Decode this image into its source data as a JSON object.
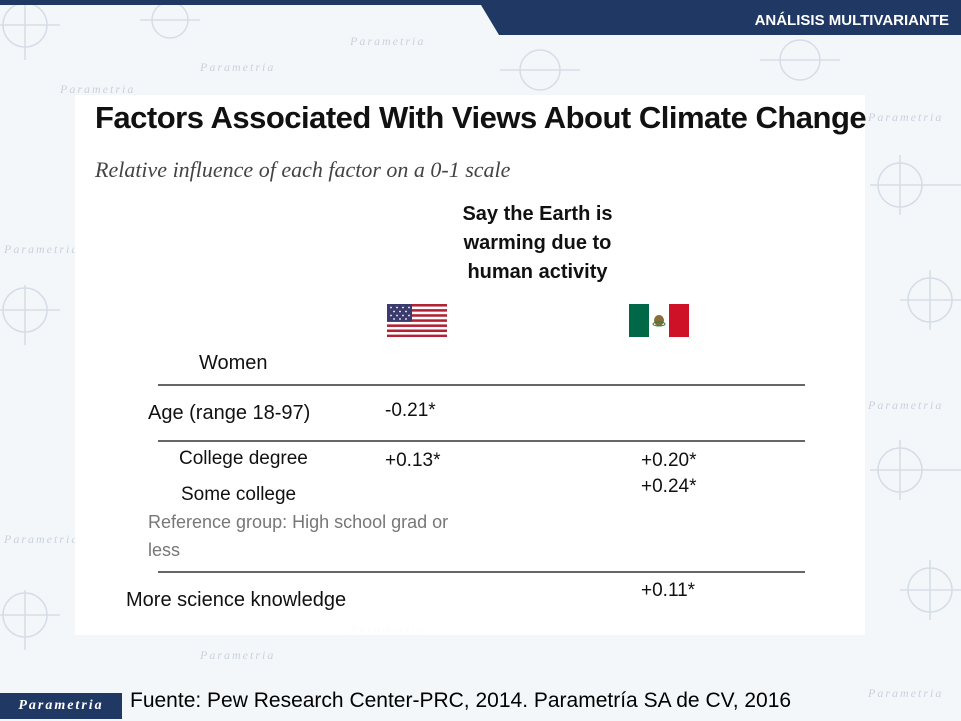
{
  "header": {
    "section": "ANÁLISIS MULTIVARIANTE"
  },
  "watermark": {
    "text": "Parametria"
  },
  "slide": {
    "title": "Factors Associated With Views About Climate Change",
    "subtitle": "Relative influence of each factor on a 0-1 scale",
    "column_header": "Say the Earth is warming due to human activity",
    "columns": [
      {
        "flag": "usa-flag-icon"
      },
      {
        "flag": "mexico-flag-icon"
      }
    ],
    "rows": {
      "women": {
        "label": "Women"
      },
      "age": {
        "label": "Age (range 18-97)",
        "usa": "-0.21*",
        "mexico": ""
      },
      "college_degree": {
        "label": "College degree",
        "usa": "+0.13*",
        "mexico": "+0.20*"
      },
      "some_college": {
        "label": "Some college",
        "usa": "",
        "mexico": "+0.24*"
      },
      "reference_note": "Reference group: High school grad or less",
      "science": {
        "label": "More science knowledge",
        "usa": "",
        "mexico": "+0.11*"
      }
    }
  },
  "footer": {
    "source": "Fuente: Pew Research Center-PRC, 2014. Parametría SA de CV, 2016"
  },
  "logo": {
    "text": "Parametria"
  },
  "colors": {
    "brand_navy": "#1f3864",
    "usa_red": "#b22234",
    "usa_blue": "#3c3b6e",
    "mexico_green": "#006847",
    "mexico_red": "#ce1126"
  }
}
